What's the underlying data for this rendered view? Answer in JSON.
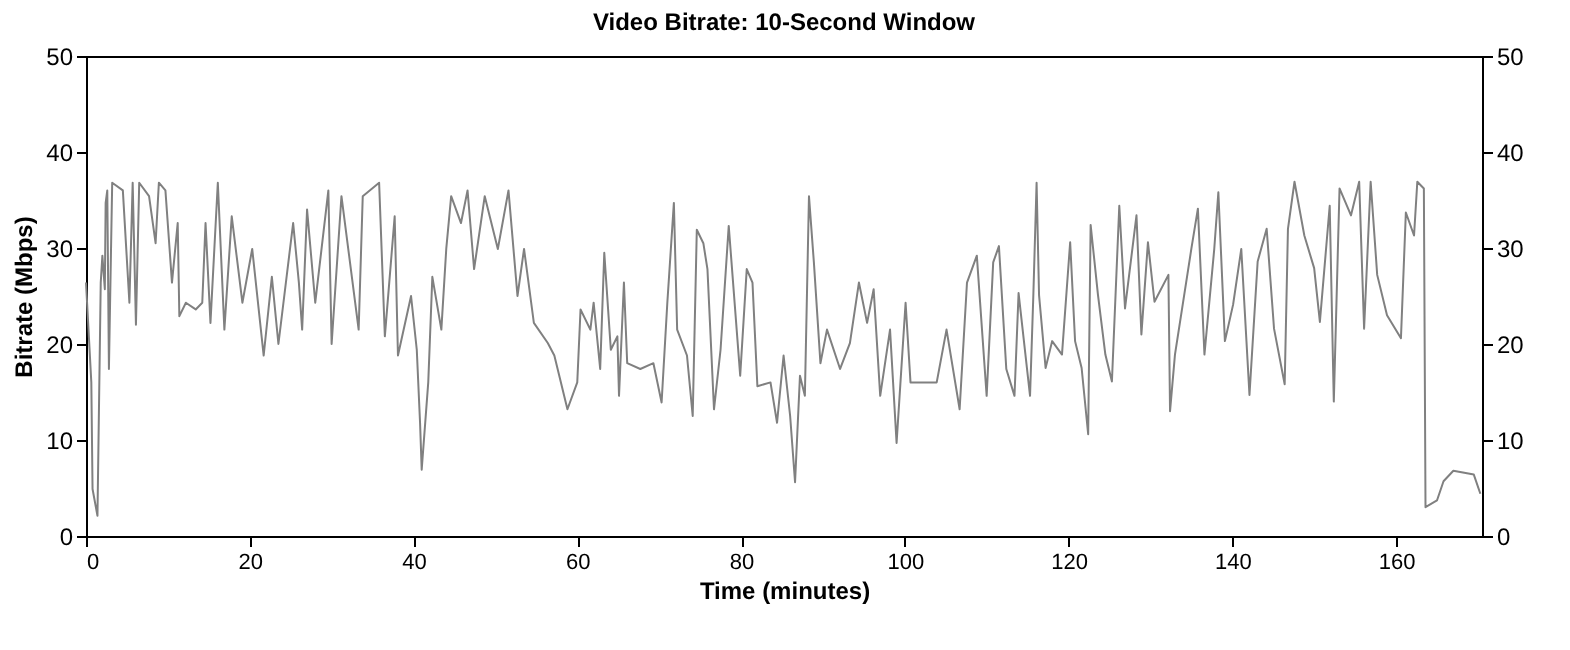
{
  "chart_data": {
    "type": "line",
    "title": "Video Bitrate: 10-Second Window",
    "xlabel": "Time (minutes)",
    "ylabel": "Bitrate (Mbps)",
    "xlim": [
      0,
      170.5
    ],
    "xticks": [
      0,
      20,
      40,
      60,
      80,
      100,
      120,
      140,
      160
    ],
    "ylim": [
      0,
      50
    ],
    "yticks": [
      0,
      10,
      20,
      30,
      40,
      50
    ],
    "y2lim": [
      0,
      50
    ],
    "y2ticks": [
      0,
      10,
      20,
      30,
      40,
      50
    ],
    "grid": false,
    "legend": false,
    "marker": "none",
    "line_style": "solid",
    "series": [
      {
        "color": "#808080",
        "x": [
          0,
          0.65,
          0.8,
          1.4,
          1.8,
          2.0,
          2.3,
          2.4,
          2.6,
          2.8,
          3.2,
          4.5,
          5.3,
          5.7,
          6.1,
          6.5,
          7.7,
          8.5,
          8.9,
          9.7,
          10.5,
          11.2,
          11.4,
          12.2,
          13.4,
          14.2,
          14.6,
          15.2,
          16.1,
          16.9,
          17.8,
          19.1,
          20.3,
          21.7,
          22.7,
          23.5,
          25.3,
          26,
          26.4,
          27,
          28,
          29.6,
          30,
          31.2,
          33.3,
          33.8,
          35.8,
          36.5,
          37.7,
          38.1,
          39.7,
          40.4,
          40.8,
          41,
          41.8,
          42.3,
          43.4,
          44,
          44.6,
          45.8,
          46.6,
          47.4,
          48.7,
          50.3,
          51.6,
          52.7,
          53.5,
          54.7,
          56.4,
          57.2,
          58.8,
          60,
          60.4,
          61.6,
          62,
          62.8,
          63.3,
          64.1,
          64.9,
          65.1,
          65.7,
          66.1,
          67.7,
          69.3,
          70.3,
          71,
          71.8,
          72.2,
          73.4,
          74.1,
          74.6,
          75.4,
          75.9,
          76.7,
          77.5,
          78.5,
          79.9,
          80.7,
          81.4,
          82,
          83.6,
          84.4,
          85.2,
          86,
          86.6,
          87.2,
          87.8,
          88.3,
          88.9,
          89.7,
          90.5,
          92.1,
          93.3,
          94.4,
          95.4,
          96.2,
          97,
          98.2,
          99,
          100.1,
          100.7,
          102.3,
          103.9,
          105.1,
          106.7,
          107.6,
          108.8,
          110,
          110.8,
          111.5,
          112.4,
          113.4,
          113.9,
          115.3,
          115.7,
          116.1,
          116.4,
          117.2,
          118,
          119.2,
          120.2,
          120.8,
          121.6,
          122.4,
          122.7,
          123.6,
          124.5,
          125.3,
          126.2,
          126.9,
          128.3,
          128.9,
          129.7,
          130.5,
          132.2,
          132.4,
          133,
          135,
          135.8,
          136.6,
          137.8,
          138.3,
          139.1,
          140.1,
          141.1,
          142.1,
          143.1,
          144.2,
          145.1,
          146.4,
          146.8,
          147.6,
          148.8,
          150,
          150.7,
          151.9,
          152.4,
          153.1,
          154.5,
          155.5,
          156.1,
          156.9,
          157.7,
          158.9,
          160.6,
          161.2,
          162.2,
          162.6,
          163.4,
          163.6,
          165,
          165.8,
          167,
          169.5,
          170.3
        ],
        "values": [
          26.4,
          16,
          4.9,
          2.1,
          26.4,
          29.2,
          25.7,
          34.7,
          36,
          17.4,
          36.8,
          36,
          24.3,
          36.8,
          22,
          36.8,
          35.4,
          30.5,
          36.8,
          36,
          26.4,
          32.6,
          22.9,
          24.3,
          23.6,
          24.3,
          32.6,
          22.2,
          36.8,
          21.5,
          33.3,
          24.3,
          29.9,
          18.8,
          27,
          20,
          32.6,
          26.4,
          21.5,
          34,
          24.3,
          36,
          20,
          35.4,
          21.5,
          35.4,
          36.8,
          20.8,
          33.3,
          18.8,
          25,
          19.4,
          11.8,
          6.9,
          16,
          27,
          21.5,
          29.9,
          35.4,
          32.6,
          36,
          27.8,
          35.4,
          29.9,
          36,
          25,
          29.9,
          22.2,
          20.1,
          18.8,
          13.2,
          16,
          23.6,
          21.5,
          24.3,
          17.4,
          29.5,
          19.4,
          20.8,
          14.6,
          26.4,
          18,
          17.4,
          18,
          13.9,
          24.3,
          34.7,
          21.5,
          18.8,
          12.5,
          31.9,
          30.5,
          27.8,
          13.2,
          19.4,
          32.3,
          16.7,
          27.8,
          26.4,
          15.6,
          16,
          11.8,
          18.8,
          12.5,
          5.6,
          16.7,
          14.6,
          35.4,
          28.5,
          18,
          21.5,
          17.4,
          20.1,
          26.4,
          22.2,
          25.7,
          14.6,
          21.5,
          9.7,
          24.3,
          16,
          16,
          16,
          21.5,
          13.2,
          26.4,
          29.2,
          14.6,
          28.5,
          30.2,
          17.4,
          14.6,
          25.3,
          14.6,
          25,
          36.8,
          25.1,
          17.5,
          20.3,
          18.9,
          30.6,
          20.3,
          17.5,
          10.6,
          32.4,
          25.1,
          18.9,
          16.1,
          34.4,
          23.7,
          33.4,
          21,
          30.6,
          24.4,
          27.2,
          13,
          18.9,
          29.9,
          34.1,
          18.9,
          29.9,
          35.8,
          20.3,
          24.1,
          29.9,
          14.7,
          28.6,
          32,
          21.6,
          15.8,
          32,
          36.9,
          31.3,
          27.9,
          22.3,
          34.4,
          14,
          36.2,
          33.4,
          36.9,
          21.6,
          36.9,
          27.2,
          23,
          20.6,
          33.7,
          31.3,
          36.9,
          36.2,
          3,
          3.7,
          5.7,
          6.8,
          6.4,
          4.4
        ]
      }
    ]
  }
}
